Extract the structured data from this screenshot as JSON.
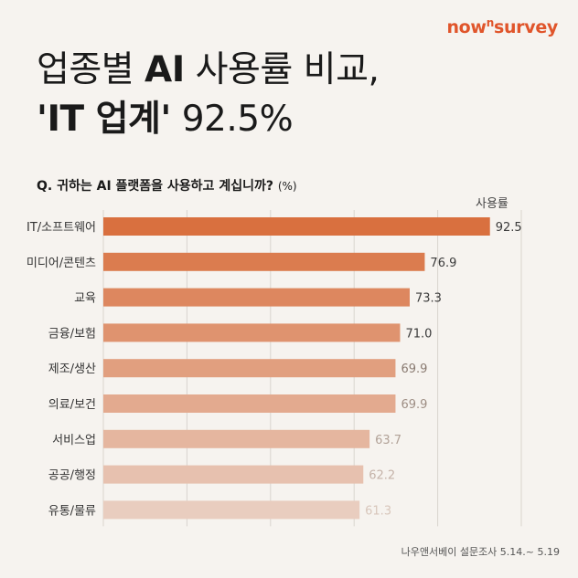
{
  "brand": {
    "logo_pre": "now",
    "logo_sup": "n",
    "logo_post": "survey"
  },
  "title": {
    "line1_pre": "업종별 ",
    "line1_bold": "AI",
    "line1_post": " 사용률 비교,",
    "line2_bold": "'IT 업계'",
    "line2_post": " 92.5%"
  },
  "question": {
    "text": "Q. 귀하는 AI 플랫폼을 사용하고 계십니까?",
    "unit": "(%)"
  },
  "source": "나우앤서베이 설문조사 5.14.~ 5.19",
  "colors": {
    "bar_start": "#d9703f",
    "bar_end": "#e9cdbf",
    "label_dark": "#3a3a3a",
    "label_light": "#ffffff",
    "grid": "#d9d4ce"
  },
  "chart_data": {
    "type": "bar",
    "orientation": "horizontal",
    "value_header": "사용률",
    "categories": [
      "IT/소프트웨어",
      "미디어/콘텐츠",
      "교육",
      "금융/보험",
      "제조/생산",
      "의료/보건",
      "서비스업",
      "공공/행정",
      "유통/물류"
    ],
    "values": [
      92.5,
      76.9,
      73.3,
      71.0,
      69.9,
      69.9,
      63.7,
      62.2,
      61.3
    ],
    "value_labels": [
      "92.5",
      "76.9",
      "73.3",
      "71.0",
      "69.9",
      "69.9",
      "63.7",
      "62.2",
      "61.3"
    ],
    "xlim": [
      0,
      100
    ],
    "grid": true,
    "unit": "%"
  }
}
